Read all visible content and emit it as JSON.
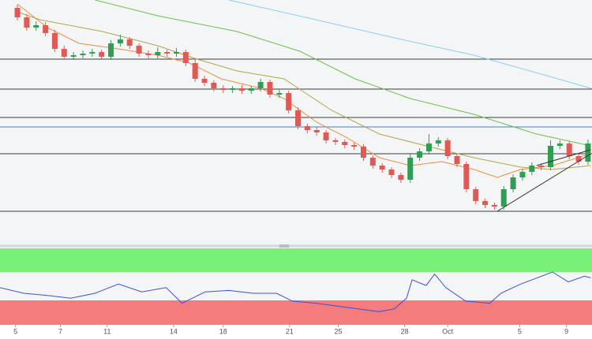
{
  "chart_data": {
    "type": "candlestick",
    "xlim": [
      -1.86,
      61.43
    ],
    "ylim": [
      0,
      310
    ],
    "xticks": [
      {
        "value": -0.2,
        "label": "5"
      },
      {
        "value": 4.6,
        "label": "7"
      },
      {
        "value": 9.6,
        "label": "11"
      },
      {
        "value": 16.7,
        "label": "14"
      },
      {
        "value": 22,
        "label": "18"
      },
      {
        "value": 29.1,
        "label": "21"
      },
      {
        "value": 34.3,
        "label": "25"
      },
      {
        "value": 41.4,
        "label": "28"
      },
      {
        "value": 46,
        "label": "Oct"
      },
      {
        "value": 53.7,
        "label": "5"
      },
      {
        "value": 58.7,
        "label": "9"
      }
    ],
    "up_color": "#2f9e52",
    "down_color": "#e05a55",
    "open": [
      300,
      288,
      275,
      278,
      268,
      248,
      238,
      240,
      242,
      244,
      238,
      255,
      260,
      252,
      242,
      240,
      244,
      242,
      244,
      230,
      210,
      205,
      198,
      196,
      198,
      195,
      198,
      206,
      190,
      192,
      170,
      150,
      145,
      142,
      132,
      130,
      126,
      124,
      110,
      100,
      95,
      88,
      82,
      110,
      118,
      128,
      132,
      112,
      102,
      70,
      55,
      50,
      48,
      70,
      85,
      92,
      100,
      98,
      125,
      128,
      112,
      105
    ],
    "high": [
      304,
      292,
      283,
      282,
      272,
      252,
      244,
      246,
      248,
      247,
      259,
      266,
      263,
      255,
      246,
      250,
      247,
      249,
      247,
      234,
      214,
      208,
      202,
      201,
      202,
      201,
      210,
      209,
      196,
      195,
      174,
      153,
      149,
      145,
      135,
      133,
      129,
      127,
      113,
      103,
      98,
      91,
      115,
      122,
      140,
      136,
      135,
      115,
      105,
      73,
      58,
      53,
      74,
      89,
      96,
      104,
      103,
      132,
      132,
      131,
      115,
      133
    ],
    "low": [
      284,
      271,
      271,
      264,
      244,
      234,
      234,
      236,
      238,
      234,
      234,
      251,
      248,
      238,
      236,
      236,
      238,
      238,
      226,
      206,
      201,
      194,
      192,
      192,
      191,
      191,
      194,
      186,
      186,
      166,
      146,
      141,
      138,
      128,
      126,
      122,
      120,
      106,
      96,
      91,
      84,
      78,
      78,
      106,
      114,
      124,
      108,
      98,
      66,
      51,
      46,
      44,
      44,
      66,
      81,
      88,
      94,
      94,
      121,
      108,
      101,
      101
    ],
    "close": [
      288,
      275,
      278,
      268,
      248,
      238,
      240,
      242,
      244,
      238,
      255,
      260,
      252,
      242,
      240,
      244,
      242,
      244,
      230,
      210,
      205,
      198,
      196,
      198,
      195,
      198,
      206,
      190,
      192,
      170,
      150,
      145,
      142,
      132,
      130,
      126,
      124,
      110,
      100,
      95,
      88,
      82,
      110,
      118,
      128,
      132,
      112,
      102,
      70,
      55,
      50,
      48,
      70,
      85,
      92,
      100,
      98,
      125,
      128,
      112,
      105,
      128
    ],
    "levels": [
      235,
      197,
      161,
      115,
      42
    ],
    "level_color": "#3a3a3a",
    "pivot": {
      "value": 149,
      "color": "#4a7fc0"
    },
    "overlays": [
      {
        "color": "#f08c3c",
        "x": [
          0,
          3.2,
          6.6,
          10.8,
          15,
          18.4,
          21.8,
          26,
          28.5,
          32,
          35.3,
          38.7,
          42,
          45.4,
          48.8,
          51.3,
          53.8,
          57.2,
          61.3
        ],
        "values": [
          305,
          275,
          255,
          248,
          240,
          230,
          210,
          198,
          185,
          155,
          135,
          110,
          100,
          105,
          95,
          85,
          95,
          100,
          115
        ]
      },
      {
        "color": "#b5a642",
        "x": [
          0,
          2.4,
          9.1,
          15,
          19.2,
          23.5,
          28.5,
          33.6,
          38.7,
          43.7,
          48.8,
          53.8,
          57.2,
          61.3
        ],
        "values": [
          295,
          285,
          270,
          252,
          235,
          220,
          210,
          170,
          140,
          125,
          110,
          98,
          95,
          100
        ]
      },
      {
        "color": "#6cc04a",
        "x": [
          8.3,
          15,
          23.5,
          30.2,
          36.1,
          42,
          48.8,
          55.5,
          61.3
        ],
        "values": [
          310,
          290,
          270,
          245,
          210,
          185,
          165,
          140,
          125
        ]
      },
      {
        "color": "#8ccdf0",
        "x": [
          22.6,
          31.9,
          40.3,
          48.8,
          57.2,
          61.3
        ],
        "values": [
          310,
          285,
          262,
          240,
          212,
          198
        ]
      }
    ],
    "trendlines": [
      {
        "color": "#333333",
        "x": [
          51.3,
          61.3
        ],
        "values": [
          42,
          115
        ]
      },
      {
        "color": "#333333",
        "x": [
          55.5,
          61.3
        ],
        "values": [
          100,
          120
        ]
      }
    ],
    "rsi": {
      "ylim": [
        0,
        100
      ],
      "levels": [
        30,
        70
      ],
      "overbought_color": "#78f078",
      "oversold_color": "#f47c7c",
      "color": "#3d4fd8",
      "x": [
        -1.9,
        0.7,
        3.2,
        5.7,
        8.3,
        10.8,
        13.3,
        15.9,
        17.6,
        20.1,
        22.6,
        25.2,
        27.7,
        29.4,
        31.9,
        35.3,
        38.7,
        40.3,
        41.6,
        42.2,
        43.7,
        44.6,
        45.8,
        47.9,
        50.5,
        51.7,
        53.8,
        57.2,
        58.9,
        60.6,
        61.3
      ],
      "values": [
        48,
        40,
        37,
        33,
        40,
        53,
        42,
        48,
        26,
        42,
        44,
        40,
        40,
        29,
        26,
        20,
        14,
        18,
        33,
        59,
        51,
        67,
        48,
        29,
        26,
        40,
        53,
        70,
        56,
        64,
        62
      ]
    }
  }
}
